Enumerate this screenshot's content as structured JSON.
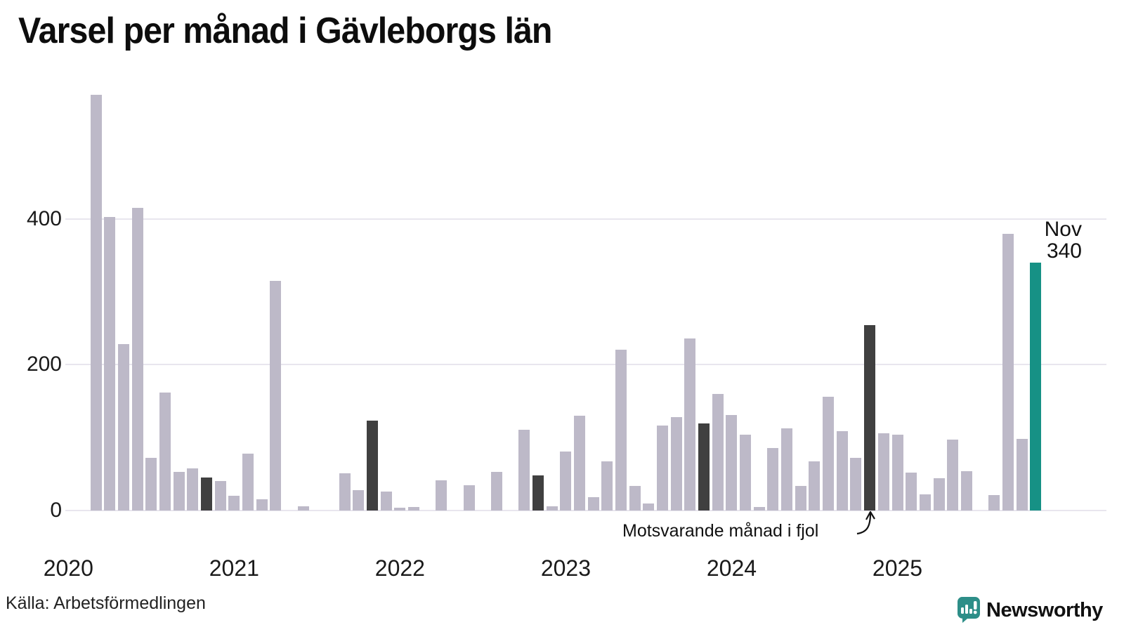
{
  "title": "Varsel per månad i Gävleborgs län",
  "annotation": {
    "text": "Motsvarande månad i fjol"
  },
  "highlight": {
    "month_label": "Nov",
    "value_label": "340"
  },
  "footer": {
    "source": "Källa: Arbetsförmedlingen",
    "brand": "Newsworthy"
  },
  "colors": {
    "bar_normal": "#bdb9c8",
    "bar_last_year_nov": "#404040",
    "bar_current": "#169185",
    "grid": "#e8e6ee",
    "brand_teal": "#2d8e88"
  },
  "chart_data": {
    "type": "bar",
    "title": "Varsel per månad i Gävleborgs län",
    "xlabel": "",
    "ylabel": "",
    "yticks": [
      0,
      200,
      400
    ],
    "ylim": [
      0,
      590
    ],
    "grid": "horizontal",
    "years": [
      2020,
      2021,
      2022,
      2023,
      2024,
      2025
    ],
    "legend_note": "dark bars = November of each previous year; teal bar = latest month (Nov 2025)",
    "points": [
      {
        "m": "2020-01",
        "v": 0,
        "k": "normal"
      },
      {
        "m": "2020-02",
        "v": 0,
        "k": "normal"
      },
      {
        "m": "2020-03",
        "v": 570,
        "k": "normal"
      },
      {
        "m": "2020-04",
        "v": 403,
        "k": "normal"
      },
      {
        "m": "2020-05",
        "v": 228,
        "k": "normal"
      },
      {
        "m": "2020-06",
        "v": 415,
        "k": "normal"
      },
      {
        "m": "2020-07",
        "v": 72,
        "k": "normal"
      },
      {
        "m": "2020-08",
        "v": 162,
        "k": "normal"
      },
      {
        "m": "2020-09",
        "v": 53,
        "k": "normal"
      },
      {
        "m": "2020-10",
        "v": 58,
        "k": "normal"
      },
      {
        "m": "2020-11",
        "v": 45,
        "k": "last_year_nov"
      },
      {
        "m": "2020-12",
        "v": 40,
        "k": "normal"
      },
      {
        "m": "2021-01",
        "v": 20,
        "k": "normal"
      },
      {
        "m": "2021-02",
        "v": 78,
        "k": "normal"
      },
      {
        "m": "2021-03",
        "v": 15,
        "k": "normal"
      },
      {
        "m": "2021-04",
        "v": 315,
        "k": "normal"
      },
      {
        "m": "2021-05",
        "v": 0,
        "k": "normal"
      },
      {
        "m": "2021-06",
        "v": 6,
        "k": "normal"
      },
      {
        "m": "2021-07",
        "v": 0,
        "k": "normal"
      },
      {
        "m": "2021-08",
        "v": 0,
        "k": "normal"
      },
      {
        "m": "2021-09",
        "v": 51,
        "k": "normal"
      },
      {
        "m": "2021-10",
        "v": 28,
        "k": "normal"
      },
      {
        "m": "2021-11",
        "v": 123,
        "k": "last_year_nov"
      },
      {
        "m": "2021-12",
        "v": 26,
        "k": "normal"
      },
      {
        "m": "2022-01",
        "v": 4,
        "k": "normal"
      },
      {
        "m": "2022-02",
        "v": 5,
        "k": "normal"
      },
      {
        "m": "2022-03",
        "v": 0,
        "k": "normal"
      },
      {
        "m": "2022-04",
        "v": 41,
        "k": "normal"
      },
      {
        "m": "2022-05",
        "v": 0,
        "k": "normal"
      },
      {
        "m": "2022-06",
        "v": 35,
        "k": "normal"
      },
      {
        "m": "2022-07",
        "v": 0,
        "k": "normal"
      },
      {
        "m": "2022-08",
        "v": 53,
        "k": "normal"
      },
      {
        "m": "2022-09",
        "v": 0,
        "k": "normal"
      },
      {
        "m": "2022-10",
        "v": 111,
        "k": "normal"
      },
      {
        "m": "2022-11",
        "v": 48,
        "k": "last_year_nov"
      },
      {
        "m": "2022-12",
        "v": 6,
        "k": "normal"
      },
      {
        "m": "2023-01",
        "v": 81,
        "k": "normal"
      },
      {
        "m": "2023-02",
        "v": 130,
        "k": "normal"
      },
      {
        "m": "2023-03",
        "v": 18,
        "k": "normal"
      },
      {
        "m": "2023-04",
        "v": 67,
        "k": "normal"
      },
      {
        "m": "2023-05",
        "v": 221,
        "k": "normal"
      },
      {
        "m": "2023-06",
        "v": 34,
        "k": "normal"
      },
      {
        "m": "2023-07",
        "v": 10,
        "k": "normal"
      },
      {
        "m": "2023-08",
        "v": 117,
        "k": "normal"
      },
      {
        "m": "2023-09",
        "v": 128,
        "k": "normal"
      },
      {
        "m": "2023-10",
        "v": 236,
        "k": "normal"
      },
      {
        "m": "2023-11",
        "v": 119,
        "k": "last_year_nov"
      },
      {
        "m": "2023-12",
        "v": 160,
        "k": "normal"
      },
      {
        "m": "2024-01",
        "v": 131,
        "k": "normal"
      },
      {
        "m": "2024-02",
        "v": 104,
        "k": "normal"
      },
      {
        "m": "2024-03",
        "v": 5,
        "k": "normal"
      },
      {
        "m": "2024-04",
        "v": 86,
        "k": "normal"
      },
      {
        "m": "2024-05",
        "v": 113,
        "k": "normal"
      },
      {
        "m": "2024-06",
        "v": 34,
        "k": "normal"
      },
      {
        "m": "2024-07",
        "v": 67,
        "k": "normal"
      },
      {
        "m": "2024-08",
        "v": 156,
        "k": "normal"
      },
      {
        "m": "2024-09",
        "v": 109,
        "k": "normal"
      },
      {
        "m": "2024-10",
        "v": 72,
        "k": "normal"
      },
      {
        "m": "2024-11",
        "v": 254,
        "k": "last_year_nov"
      },
      {
        "m": "2024-12",
        "v": 106,
        "k": "normal"
      },
      {
        "m": "2025-01",
        "v": 104,
        "k": "normal"
      },
      {
        "m": "2025-02",
        "v": 52,
        "k": "normal"
      },
      {
        "m": "2025-03",
        "v": 22,
        "k": "normal"
      },
      {
        "m": "2025-04",
        "v": 44,
        "k": "normal"
      },
      {
        "m": "2025-05",
        "v": 97,
        "k": "normal"
      },
      {
        "m": "2025-06",
        "v": 54,
        "k": "normal"
      },
      {
        "m": "2025-07",
        "v": 0,
        "k": "normal"
      },
      {
        "m": "2025-08",
        "v": 21,
        "k": "normal"
      },
      {
        "m": "2025-09",
        "v": 380,
        "k": "normal"
      },
      {
        "m": "2025-10",
        "v": 98,
        "k": "normal"
      },
      {
        "m": "2025-11",
        "v": 340,
        "k": "current"
      }
    ]
  }
}
